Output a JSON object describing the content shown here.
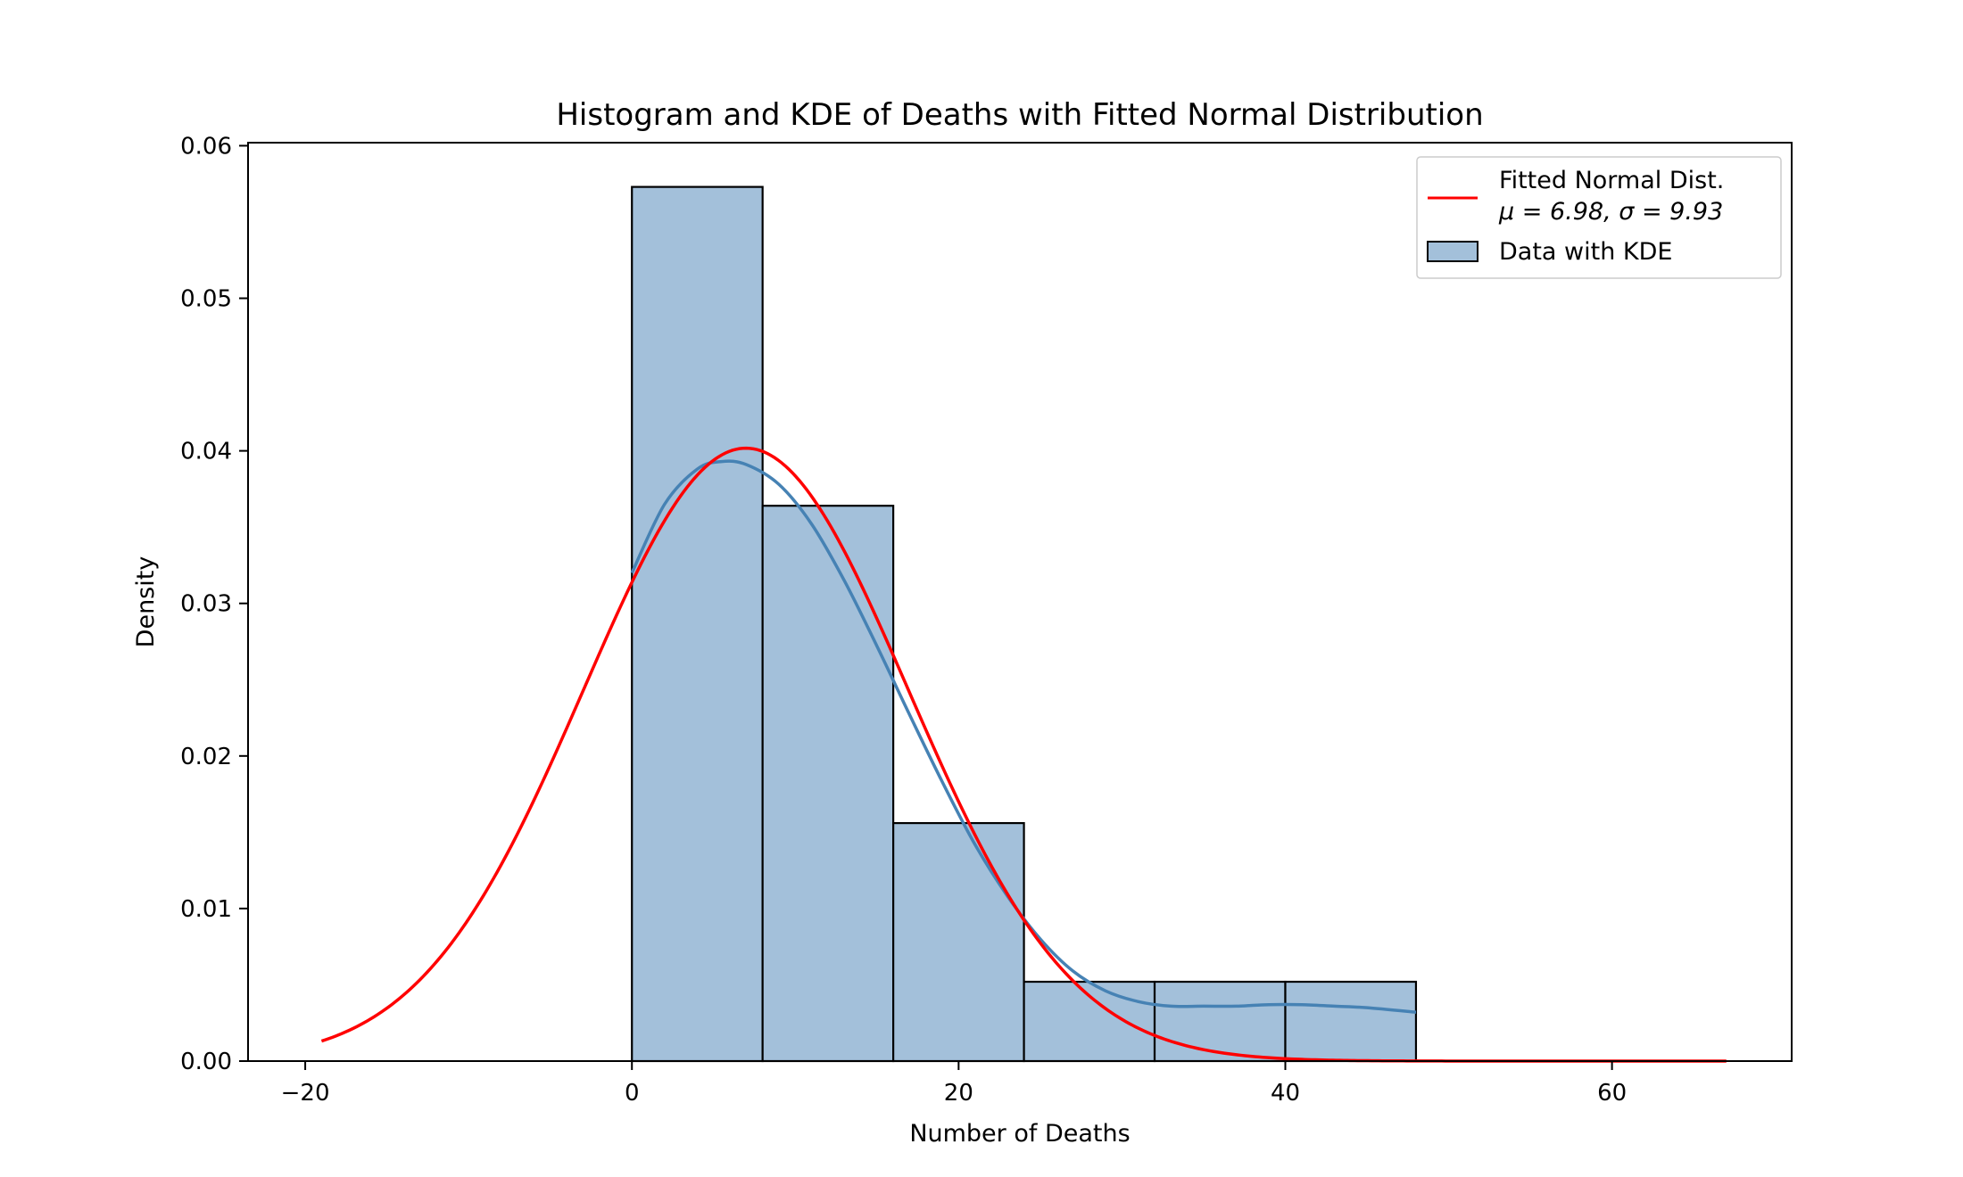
{
  "chart_data": {
    "type": "bar",
    "title": "Histogram and KDE of Deaths with Fitted Normal Distribution",
    "xlabel": "Number of Deaths",
    "ylabel": "Density",
    "xlim": [
      -23.5,
      71.0
    ],
    "ylim": [
      0,
      0.0602
    ],
    "xticks": [
      -20,
      0,
      20,
      40,
      60
    ],
    "xtick_labels": [
      "−20",
      "0",
      "20",
      "40",
      "60"
    ],
    "yticks": [
      0.0,
      0.01,
      0.02,
      0.03,
      0.04,
      0.05,
      0.06
    ],
    "ytick_labels": [
      "0.00",
      "0.01",
      "0.02",
      "0.03",
      "0.04",
      "0.05",
      "0.06"
    ],
    "grid": false,
    "legend_position": "top-right",
    "histogram": {
      "name": "Data with KDE",
      "bin_edges": [
        0,
        8,
        16,
        24,
        32,
        40,
        48
      ],
      "density": [
        0.0573,
        0.0364,
        0.0156,
        0.0052,
        0.0052,
        0.0052
      ],
      "fill_color": "#a3c0da",
      "edge_color": "#000000"
    },
    "kde": {
      "color": "#4682b4",
      "x": [
        0,
        2,
        4,
        5.5,
        7,
        9,
        11,
        13,
        15,
        17,
        19,
        21,
        23,
        25,
        27,
        29,
        31,
        33,
        35,
        37,
        39,
        41,
        43,
        45,
        48
      ],
      "y": [
        0.032,
        0.0365,
        0.0388,
        0.0393,
        0.0391,
        0.0378,
        0.0352,
        0.0315,
        0.0272,
        0.0227,
        0.0183,
        0.0142,
        0.0108,
        0.008,
        0.0059,
        0.0046,
        0.0039,
        0.0036,
        0.0036,
        0.0036,
        0.0037,
        0.0037,
        0.0036,
        0.0035,
        0.0032
      ]
    },
    "normal_fit": {
      "name_line1": "Fitted Normal Dist.",
      "name_line2": "μ = 6.98, σ = 9.93",
      "mu": 6.98,
      "sigma": 9.93,
      "x_range": [
        -19,
        67
      ],
      "color": "#ff0000"
    }
  }
}
